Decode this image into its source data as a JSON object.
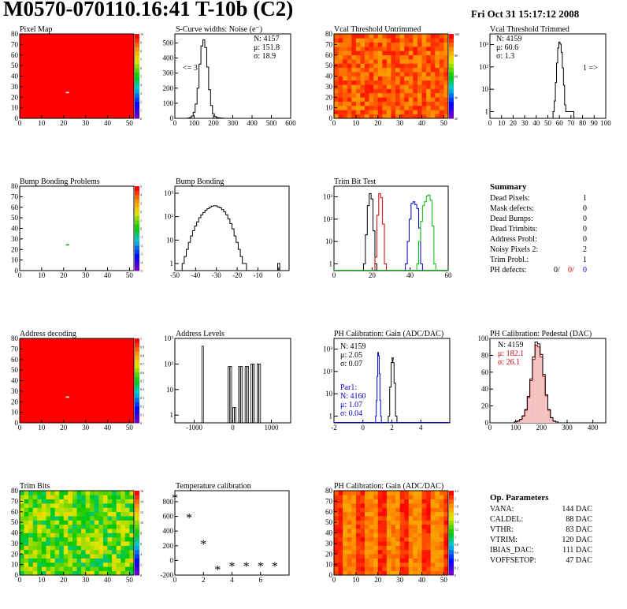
{
  "header": {
    "title": "M0570-070110.16:41 T-10b (C2)",
    "date": "Fri Oct 31 15:17:12 2008"
  },
  "panels": {
    "pixel_map": {
      "title": "Pixel Map"
    },
    "scurve": {
      "title": "S-Curve widths: Noise (e⁻)",
      "stats": [
        "N: 4157",
        "μ: 151.8",
        "σ: 18.9"
      ],
      "underflow": "<= 3"
    },
    "vcal_untrimmed": {
      "title": "Vcal Threshold Untrimmed"
    },
    "vcal_trimmed": {
      "title": "Vcal Threshold Trimmed",
      "stats": [
        "N: 4159",
        "μ: 60.6",
        "σ: 1.3"
      ],
      "overflow": "1 =>"
    },
    "bump_problems": {
      "title": "Bump Bonding Problems"
    },
    "bump_bonding": {
      "title": "Bump Bonding"
    },
    "trim_bit": {
      "title": "Trim Bit Test"
    },
    "summary": {
      "title": "Summary",
      "rows": [
        {
          "label": "Dead Pixels:",
          "value": "1"
        },
        {
          "label": "Mask defects:",
          "value": "0"
        },
        {
          "label": "Dead Bumps:",
          "value": "0"
        },
        {
          "label": "Dead Trimbits:",
          "value": "0"
        },
        {
          "label": "Address Probl:",
          "value": "0"
        },
        {
          "label": "Noisy Pixels 2:",
          "value": "2"
        },
        {
          "label": "Trim Probl.:",
          "value": "1"
        }
      ],
      "ph_label": "PH defects:",
      "ph_values": [
        "0/",
        "0/",
        "0"
      ]
    },
    "address_decoding": {
      "title": "Address decoding"
    },
    "address_levels": {
      "title": "Address Levels"
    },
    "ph_gain": {
      "title": "PH Calibration: Gain (ADC/DAC)",
      "stats": [
        "N: 4159",
        "μ: 2.05",
        "σ: 0.07"
      ],
      "par1": [
        "Par1:",
        "N: 4160",
        "μ: 1.07",
        "σ: 0.04"
      ]
    },
    "ph_pedestal": {
      "title": "PH Calibration: Pedestal (DAC)",
      "stats": [
        "N: 4159",
        "μ: 182.1",
        "σ: 26.1"
      ]
    },
    "trim_bits": {
      "title": "Trim Bits"
    },
    "temp_cal": {
      "title": "Temperature calibration"
    },
    "ph_gain_map": {
      "title": "PH Calibration: Gain (ADC/DAC)"
    },
    "op_params": {
      "title": "Op. Parameters",
      "rows": [
        {
          "label": "VANA:",
          "value": "144 DAC"
        },
        {
          "label": "CALDEL:",
          "value": "88 DAC"
        },
        {
          "label": "VTHR:",
          "value": "83 DAC"
        },
        {
          "label": "VTRIM:",
          "value": "120 DAC"
        },
        {
          "label": "IBIAS_DAC:",
          "value": "111 DAC"
        },
        {
          "label": "VOFFSETOP:",
          "value": "47 DAC"
        }
      ]
    }
  },
  "colors": {
    "red_series": "#d00000",
    "blue_series": "#0000c8",
    "green_series": "#00c000",
    "map_red": "#ff0000"
  },
  "chart_data": [
    {
      "id": "pixel_map",
      "type": "heatmap",
      "title": "Pixel Map",
      "xlim": [
        0,
        52
      ],
      "ylim": [
        0,
        80
      ],
      "xticks": [
        0,
        10,
        20,
        30,
        40,
        50
      ],
      "yticks": [
        0,
        10,
        20,
        30,
        40,
        50,
        60,
        70,
        80
      ],
      "zlim": [
        0,
        10
      ],
      "zticks": [
        "0",
        "1",
        "2",
        "3",
        "4",
        "5",
        "6",
        "7",
        "8",
        "9",
        "10"
      ],
      "fill": "uniform red",
      "dead_pixels": [
        [
          21,
          24
        ]
      ]
    },
    {
      "id": "scurve",
      "type": "bar",
      "title": "S-Curve widths: Noise (e⁻)",
      "xlim": [
        0,
        600
      ],
      "ylim": [
        0,
        560
      ],
      "xticks": [
        0,
        100,
        200,
        300,
        400,
        500,
        600
      ],
      "yticks": [
        0,
        100,
        200,
        300,
        400,
        500
      ],
      "x": [
        70,
        80,
        90,
        100,
        110,
        120,
        130,
        140,
        150,
        160,
        170,
        180,
        190,
        200,
        210,
        220,
        230,
        240,
        250
      ],
      "values": [
        2,
        5,
        15,
        40,
        95,
        200,
        360,
        480,
        520,
        470,
        340,
        190,
        85,
        30,
        12,
        5,
        3,
        2,
        1
      ]
    },
    {
      "id": "vcal_untrimmed",
      "type": "heatmap",
      "title": "Vcal Threshold Untrimmed",
      "xlim": [
        0,
        52
      ],
      "ylim": [
        0,
        80
      ],
      "xticks": [
        0,
        10,
        20,
        30,
        40,
        50
      ],
      "yticks": [
        0,
        10,
        20,
        30,
        40,
        50,
        60,
        70,
        80
      ],
      "zticks": [
        "20",
        "40",
        "60",
        "80",
        "100"
      ],
      "fill": "orange noisy"
    },
    {
      "id": "vcal_trimmed",
      "type": "bar",
      "title": "Vcal Threshold Trimmed",
      "log_y": true,
      "xlim": [
        0,
        100
      ],
      "ylim": [
        0.5,
        3000
      ],
      "xticks": [
        0,
        10,
        20,
        30,
        40,
        50,
        60,
        70,
        80,
        90,
        100
      ],
      "yticks": [
        "1",
        "10",
        "10²",
        "10³"
      ],
      "x": [
        55,
        56,
        57,
        58,
        59,
        60,
        61,
        62,
        63,
        64,
        65,
        66,
        72
      ],
      "values": [
        1,
        3,
        20,
        150,
        700,
        1300,
        1050,
        450,
        90,
        15,
        2,
        1,
        1
      ]
    },
    {
      "id": "bump_problems",
      "type": "heatmap",
      "title": "Bump Bonding Problems",
      "xlim": [
        0,
        52
      ],
      "ylim": [
        0,
        80
      ],
      "xticks": [
        0,
        10,
        20,
        30,
        40,
        50
      ],
      "yticks": [
        0,
        10,
        20,
        30,
        40,
        50,
        60,
        70,
        80
      ],
      "zticks": [
        "-5",
        "-4",
        "-3",
        "-2",
        "-1",
        "0",
        "1",
        "2",
        "3",
        "4",
        "5"
      ],
      "marks": [
        [
          21,
          24
        ]
      ]
    },
    {
      "id": "bump_bonding",
      "type": "bar",
      "title": "Bump Bonding",
      "log_y": true,
      "xlim": [
        -50,
        5
      ],
      "ylim": [
        0.5,
        2000
      ],
      "xticks": [
        -50,
        -40,
        -30,
        -20,
        -10,
        0
      ],
      "yticks": [
        "1",
        "10",
        "10²",
        "10³"
      ],
      "x": [
        -46,
        -45,
        -44,
        -43,
        -42,
        -41,
        -40,
        -39,
        -38,
        -37,
        -36,
        -35,
        -34,
        -33,
        -32,
        -31,
        -30,
        -29,
        -28,
        -27,
        -26,
        -25,
        -24,
        -23,
        -22,
        -21,
        -20,
        -19,
        -18,
        -17,
        -16,
        0
      ],
      "values": [
        1,
        2,
        4,
        8,
        15,
        25,
        40,
        60,
        90,
        120,
        150,
        190,
        220,
        250,
        280,
        290,
        290,
        260,
        240,
        200,
        160,
        120,
        80,
        50,
        30,
        15,
        8,
        4,
        2,
        1,
        1,
        1
      ]
    },
    {
      "id": "trim_bit",
      "type": "bar",
      "title": "Trim Bit Test",
      "log_y": true,
      "xlim": [
        0,
        60
      ],
      "ylim": [
        0.5,
        3000
      ],
      "xticks": [
        0,
        20,
        40,
        60
      ],
      "yticks": [
        "1",
        "10",
        "10²",
        "10³"
      ],
      "series": [
        {
          "x": [
            16,
            17,
            18,
            19,
            20,
            21,
            22
          ],
          "values": [
            1,
            20,
            400,
            1400,
            800,
            30,
            1
          ]
        },
        {
          "x": [
            22,
            23,
            24,
            25,
            26,
            27
          ],
          "values": [
            2,
            150,
            1400,
            900,
            60,
            1
          ]
        },
        {
          "x": [
            38,
            39,
            40,
            41,
            42,
            43,
            44,
            45,
            46
          ],
          "values": [
            1,
            10,
            100,
            500,
            600,
            450,
            300,
            40,
            1
          ]
        },
        {
          "x": [
            44,
            45,
            46,
            47,
            48,
            49,
            50,
            51,
            52,
            53
          ],
          "values": [
            1,
            10,
            80,
            400,
            600,
            1100,
            1200,
            700,
            50,
            1
          ]
        }
      ]
    },
    {
      "id": "address_decoding",
      "type": "heatmap",
      "title": "Address decoding",
      "xlim": [
        0,
        52
      ],
      "ylim": [
        0,
        80
      ],
      "xticks": [
        0,
        10,
        20,
        30,
        40,
        50
      ],
      "yticks": [
        0,
        10,
        20,
        30,
        40,
        50,
        60,
        70,
        80
      ],
      "zticks": [
        "0",
        "0.1",
        "0.2",
        "0.3",
        "0.4",
        "0.5",
        "0.6",
        "0.7",
        "0.8",
        "0.9",
        "1"
      ],
      "fill": "uniform red",
      "dead_pixels": [
        [
          21,
          24
        ]
      ]
    },
    {
      "id": "address_levels",
      "type": "bar",
      "title": "Address Levels",
      "log_y": true,
      "xlim": [
        -1500,
        1500
      ],
      "ylim": [
        0.5,
        1000
      ],
      "xticks": [
        -1000,
        0,
        1000
      ],
      "yticks": [
        "1",
        "10",
        "10²",
        "10³"
      ],
      "x": [
        -780,
        -100,
        -50,
        20,
        60,
        170,
        230,
        340,
        390,
        490,
        540,
        650,
        700
      ],
      "values": [
        500,
        80,
        80,
        2,
        2,
        80,
        80,
        80,
        80,
        100,
        100,
        100,
        100
      ]
    },
    {
      "id": "ph_gain",
      "type": "bar",
      "title": "PH Calibration: Gain (ADC/DAC)",
      "log_y": true,
      "xlim": [
        -2,
        6
      ],
      "ylim": [
        0.5,
        3000
      ],
      "xticks": [
        -2,
        0,
        2,
        4
      ],
      "yticks": [
        "1",
        "10",
        "10²",
        "10³"
      ],
      "series": [
        {
          "name": "Par1",
          "x": [
            0.9,
            0.95,
            1.0,
            1.05,
            1.1,
            1.15,
            1.2,
            1.25
          ],
          "values": [
            1,
            5,
            60,
            700,
            500,
            80,
            5,
            1
          ]
        },
        {
          "x": [
            1.8,
            1.9,
            2.0,
            2.05,
            2.1,
            2.2,
            2.3
          ],
          "values": [
            1,
            20,
            250,
            400,
            250,
            30,
            1
          ]
        }
      ]
    },
    {
      "id": "ph_pedestal",
      "type": "bar",
      "title": "PH Calibration: Pedestal (DAC)",
      "xlim": [
        0,
        450
      ],
      "ylim": [
        0,
        100
      ],
      "xticks": [
        0,
        100,
        200,
        300,
        400
      ],
      "yticks": [
        0,
        20,
        40,
        60,
        80,
        100
      ],
      "x": [
        100,
        110,
        120,
        130,
        140,
        150,
        160,
        170,
        180,
        190,
        200,
        210,
        220,
        230,
        240,
        250,
        260
      ],
      "values": [
        1,
        2,
        4,
        8,
        15,
        30,
        50,
        75,
        92,
        90,
        78,
        55,
        32,
        15,
        6,
        2,
        1
      ]
    },
    {
      "id": "trim_bits",
      "type": "heatmap",
      "title": "Trim Bits",
      "xlim": [
        0,
        52
      ],
      "ylim": [
        0,
        80
      ],
      "xticks": [
        0,
        10,
        20,
        30,
        40,
        50
      ],
      "yticks": [
        0,
        10,
        20,
        30,
        40,
        50,
        60,
        70,
        80
      ],
      "zticks": [
        "0",
        "2",
        "4",
        "6",
        "8",
        "10",
        "12",
        "14",
        "16"
      ],
      "fill": "green/yellow noisy"
    },
    {
      "id": "temp_cal",
      "type": "scatter",
      "title": "Temperature calibration",
      "xlim": [
        0,
        8
      ],
      "ylim": [
        -200,
        950
      ],
      "xticks": [
        0,
        2,
        4,
        6
      ],
      "yticks": [
        -200,
        0,
        200,
        400,
        600,
        800
      ],
      "x": [
        0,
        1,
        2,
        3,
        4,
        5,
        6,
        7
      ],
      "values": [
        850,
        580,
        220,
        -130,
        -80,
        -80,
        -80,
        -80
      ]
    },
    {
      "id": "ph_gain_map",
      "type": "heatmap",
      "title": "PH Calibration: Gain (ADC/DAC)",
      "xlim": [
        0,
        52
      ],
      "ylim": [
        0,
        80
      ],
      "xticks": [
        0,
        10,
        20,
        30,
        40,
        50
      ],
      "yticks": [
        0,
        10,
        20,
        30,
        40,
        50,
        60,
        70,
        80
      ],
      "zticks": [
        "0",
        "0.2",
        "0.4",
        "0.6",
        "0.8",
        "1",
        "1.2",
        "1.4",
        "1.6",
        "1.8",
        "2",
        "2.2"
      ],
      "fill": "red/orange columns"
    }
  ]
}
